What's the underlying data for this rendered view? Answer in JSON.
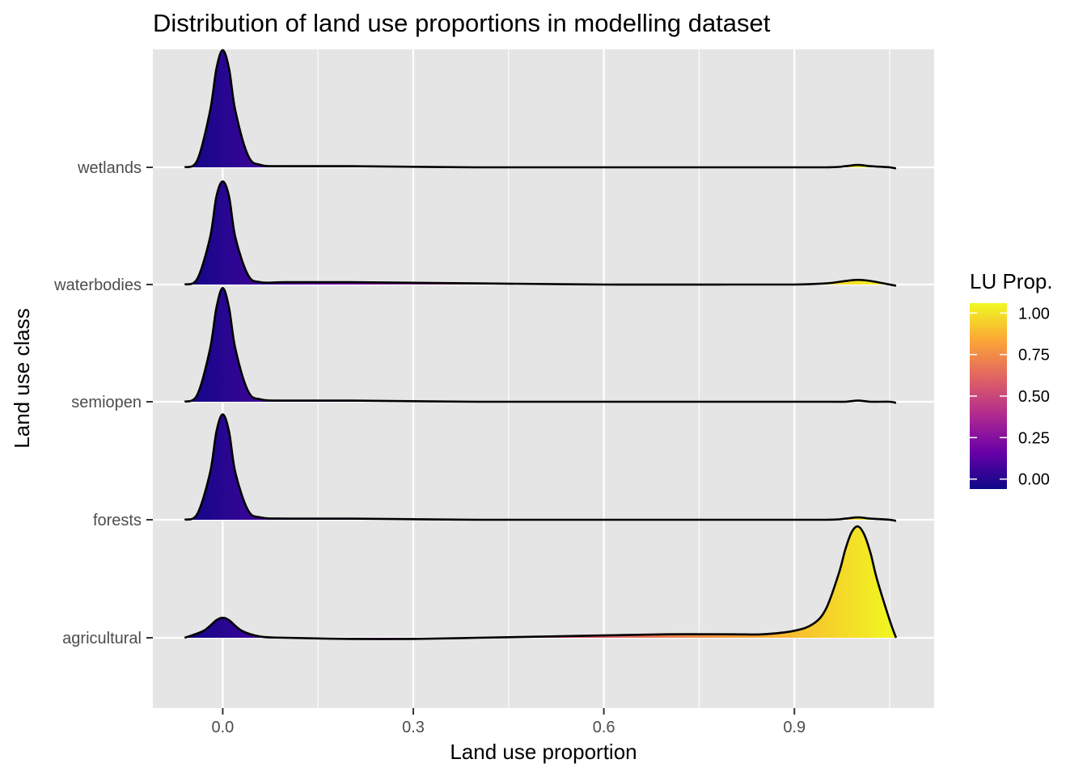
{
  "chart_data": {
    "type": "ridgeline",
    "title": "Distribution of land use proportions in modelling dataset",
    "xlabel": "Land use proportion",
    "ylabel": "Land use class",
    "xlim": [
      -0.11,
      1.12
    ],
    "x_ticks": [
      0.0,
      0.3,
      0.6,
      0.9
    ],
    "x_tick_labels": [
      "0.0",
      "0.3",
      "0.6",
      "0.9"
    ],
    "categories": [
      "agricultural",
      "forests",
      "semiopen",
      "waterbodies",
      "wetlands"
    ],
    "density_x_range": [
      -0.06,
      1.06
    ],
    "series": [
      {
        "name": "agricultural",
        "x": [
          -0.06,
          -0.03,
          -0.01,
          0.0,
          0.01,
          0.03,
          0.06,
          0.1,
          0.2,
          0.3,
          0.4,
          0.5,
          0.6,
          0.7,
          0.8,
          0.85,
          0.9,
          0.93,
          0.95,
          0.97,
          0.98,
          0.99,
          1.0,
          1.01,
          1.02,
          1.03,
          1.05,
          1.06
        ],
        "density": [
          0.0,
          0.06,
          0.15,
          0.17,
          0.15,
          0.06,
          0.01,
          0.0,
          -0.01,
          -0.01,
          0.0,
          0.01,
          0.02,
          0.03,
          0.03,
          0.03,
          0.06,
          0.12,
          0.25,
          0.55,
          0.75,
          0.9,
          0.95,
          0.88,
          0.72,
          0.5,
          0.15,
          0.0
        ]
      },
      {
        "name": "forests",
        "x": [
          -0.06,
          -0.04,
          -0.02,
          -0.01,
          0.0,
          0.01,
          0.02,
          0.04,
          0.06,
          0.1,
          0.2,
          0.4,
          0.6,
          0.8,
          0.95,
          0.98,
          1.0,
          1.02,
          1.05,
          1.06
        ],
        "density": [
          0.0,
          0.05,
          0.4,
          0.75,
          0.9,
          0.75,
          0.4,
          0.08,
          0.02,
          0.01,
          0.01,
          0.0,
          0.0,
          0.0,
          0.0,
          0.01,
          0.02,
          0.01,
          0.0,
          -0.01
        ]
      },
      {
        "name": "semiopen",
        "x": [
          -0.06,
          -0.04,
          -0.02,
          -0.01,
          0.0,
          0.01,
          0.02,
          0.04,
          0.06,
          0.1,
          0.2,
          0.4,
          0.6,
          0.8,
          0.95,
          0.98,
          1.0,
          1.02,
          1.05,
          1.06
        ],
        "density": [
          0.0,
          0.06,
          0.45,
          0.8,
          0.97,
          0.8,
          0.45,
          0.09,
          0.02,
          0.01,
          0.01,
          0.0,
          0.0,
          0.0,
          0.0,
          0.0,
          0.01,
          0.0,
          0.0,
          -0.01
        ]
      },
      {
        "name": "waterbodies",
        "x": [
          -0.06,
          -0.04,
          -0.02,
          -0.01,
          0.0,
          0.01,
          0.02,
          0.04,
          0.06,
          0.1,
          0.2,
          0.4,
          0.6,
          0.8,
          0.9,
          0.95,
          0.98,
          1.0,
          1.02,
          1.05,
          1.06
        ],
        "density": [
          0.0,
          0.05,
          0.4,
          0.75,
          0.88,
          0.75,
          0.4,
          0.08,
          0.02,
          0.02,
          0.02,
          0.01,
          0.0,
          0.0,
          0.0,
          0.01,
          0.03,
          0.04,
          0.03,
          0.0,
          -0.01
        ]
      },
      {
        "name": "wetlands",
        "x": [
          -0.06,
          -0.04,
          -0.02,
          -0.01,
          0.0,
          0.01,
          0.02,
          0.04,
          0.06,
          0.1,
          0.2,
          0.4,
          0.6,
          0.8,
          0.95,
          0.98,
          1.0,
          1.02,
          1.05,
          1.06
        ],
        "density": [
          0.0,
          0.06,
          0.48,
          0.84,
          1.0,
          0.84,
          0.48,
          0.1,
          0.02,
          0.01,
          0.01,
          0.0,
          0.0,
          0.0,
          0.0,
          0.01,
          0.02,
          0.01,
          0.0,
          -0.01
        ]
      }
    ],
    "fill": "gradient by x value (plasma scale)",
    "legend": {
      "title": "LU Prop.",
      "placement": "right",
      "ticks": [
        "0.00",
        "0.25",
        "0.50",
        "0.75",
        "1.00"
      ],
      "tick_values": [
        0.0,
        0.25,
        0.5,
        0.75,
        1.0
      ],
      "range": [
        -0.06,
        1.06
      ],
      "colors": [
        "#0d0887",
        "#6a00a8",
        "#b12a90",
        "#e16462",
        "#fca636",
        "#f0f921"
      ]
    },
    "panel_background": "#e5e5e5",
    "grid": true,
    "gridline_color": "#ffffff"
  }
}
